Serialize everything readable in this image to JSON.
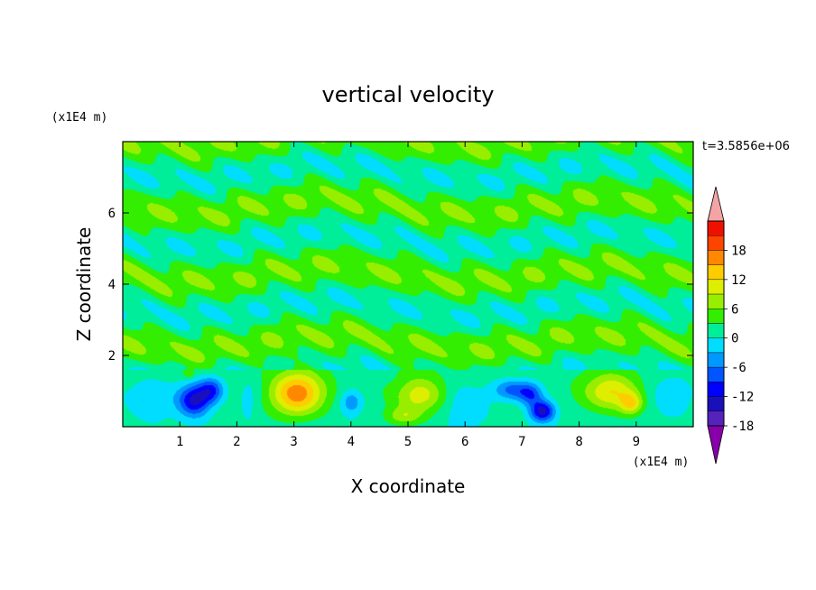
{
  "chart_data": {
    "type": "heatmap",
    "title": "vertical velocity",
    "xlabel": "X coordinate",
    "ylabel": "Z coordinate",
    "x_unit": "(x1E4 m)",
    "y_unit": "(x1E4 m)",
    "time_label": "t=3.5856e+06",
    "xlim": [
      0,
      10
    ],
    "ylim": [
      0,
      8
    ],
    "x_ticks": [
      "1",
      "2",
      "3",
      "4",
      "5",
      "6",
      "7",
      "8",
      "9"
    ],
    "y_ticks": [
      "2",
      "4",
      "6"
    ],
    "colorbar": {
      "labels": [
        "18",
        "12",
        "6",
        "0",
        "-6",
        "-12",
        "-18"
      ],
      "levels": [
        -21,
        -18,
        -15,
        -12,
        -9,
        -6,
        -3,
        0,
        3,
        6,
        9,
        12,
        15,
        18,
        21
      ],
      "colors": [
        "#8800aa",
        "#5522bb",
        "#1a10bb",
        "#0000ff",
        "#0055ff",
        "#0099ff",
        "#00ddff",
        "#00ee99",
        "#33ee00",
        "#99ee00",
        "#ddee00",
        "#ffcc00",
        "#ff8800",
        "#ff4400",
        "#ee1100",
        "#f4a4a4"
      ],
      "extend": "both"
    },
    "features": [
      {
        "x": 1.25,
        "z": 0.75,
        "w": -14,
        "sx": 0.28,
        "sz": 0.45
      },
      {
        "x": 1.55,
        "z": 1.05,
        "w": -10,
        "sx": 0.22,
        "sz": 0.35
      },
      {
        "x": 3.05,
        "z": 0.95,
        "w": 15,
        "sx": 0.45,
        "sz": 0.6
      },
      {
        "x": 4.0,
        "z": 0.7,
        "w": -7,
        "sx": 0.2,
        "sz": 0.35
      },
      {
        "x": 5.2,
        "z": 0.9,
        "w": 9,
        "sx": 0.42,
        "sz": 0.5
      },
      {
        "x": 4.9,
        "z": 0.3,
        "w": 6,
        "sx": 0.3,
        "sz": 0.25
      },
      {
        "x": 6.85,
        "z": 1.05,
        "w": -9,
        "sx": 0.35,
        "sz": 0.3
      },
      {
        "x": 7.35,
        "z": 0.45,
        "w": -15,
        "sx": 0.22,
        "sz": 0.3
      },
      {
        "x": 7.15,
        "z": 0.9,
        "w": -8,
        "sx": 0.2,
        "sz": 0.3
      },
      {
        "x": 8.55,
        "z": 1.0,
        "w": 10,
        "sx": 0.45,
        "sz": 0.5
      },
      {
        "x": 8.9,
        "z": 0.65,
        "w": 9,
        "sx": 0.2,
        "sz": 0.3
      },
      {
        "x": 1.15,
        "z": 1.5,
        "w": 4,
        "sx": 0.1,
        "sz": 0.15
      },
      {
        "x": 0.5,
        "z": 0.8,
        "w": -4,
        "sx": 0.5,
        "sz": 0.6
      },
      {
        "x": 6.0,
        "z": 0.6,
        "w": -4,
        "sx": 0.4,
        "sz": 0.6
      },
      {
        "x": 9.6,
        "z": 0.9,
        "w": -4,
        "sx": 0.4,
        "sz": 0.6
      },
      {
        "x": 2.2,
        "z": 0.8,
        "w": -3,
        "sx": 0.2,
        "sz": 0.6
      }
    ]
  }
}
